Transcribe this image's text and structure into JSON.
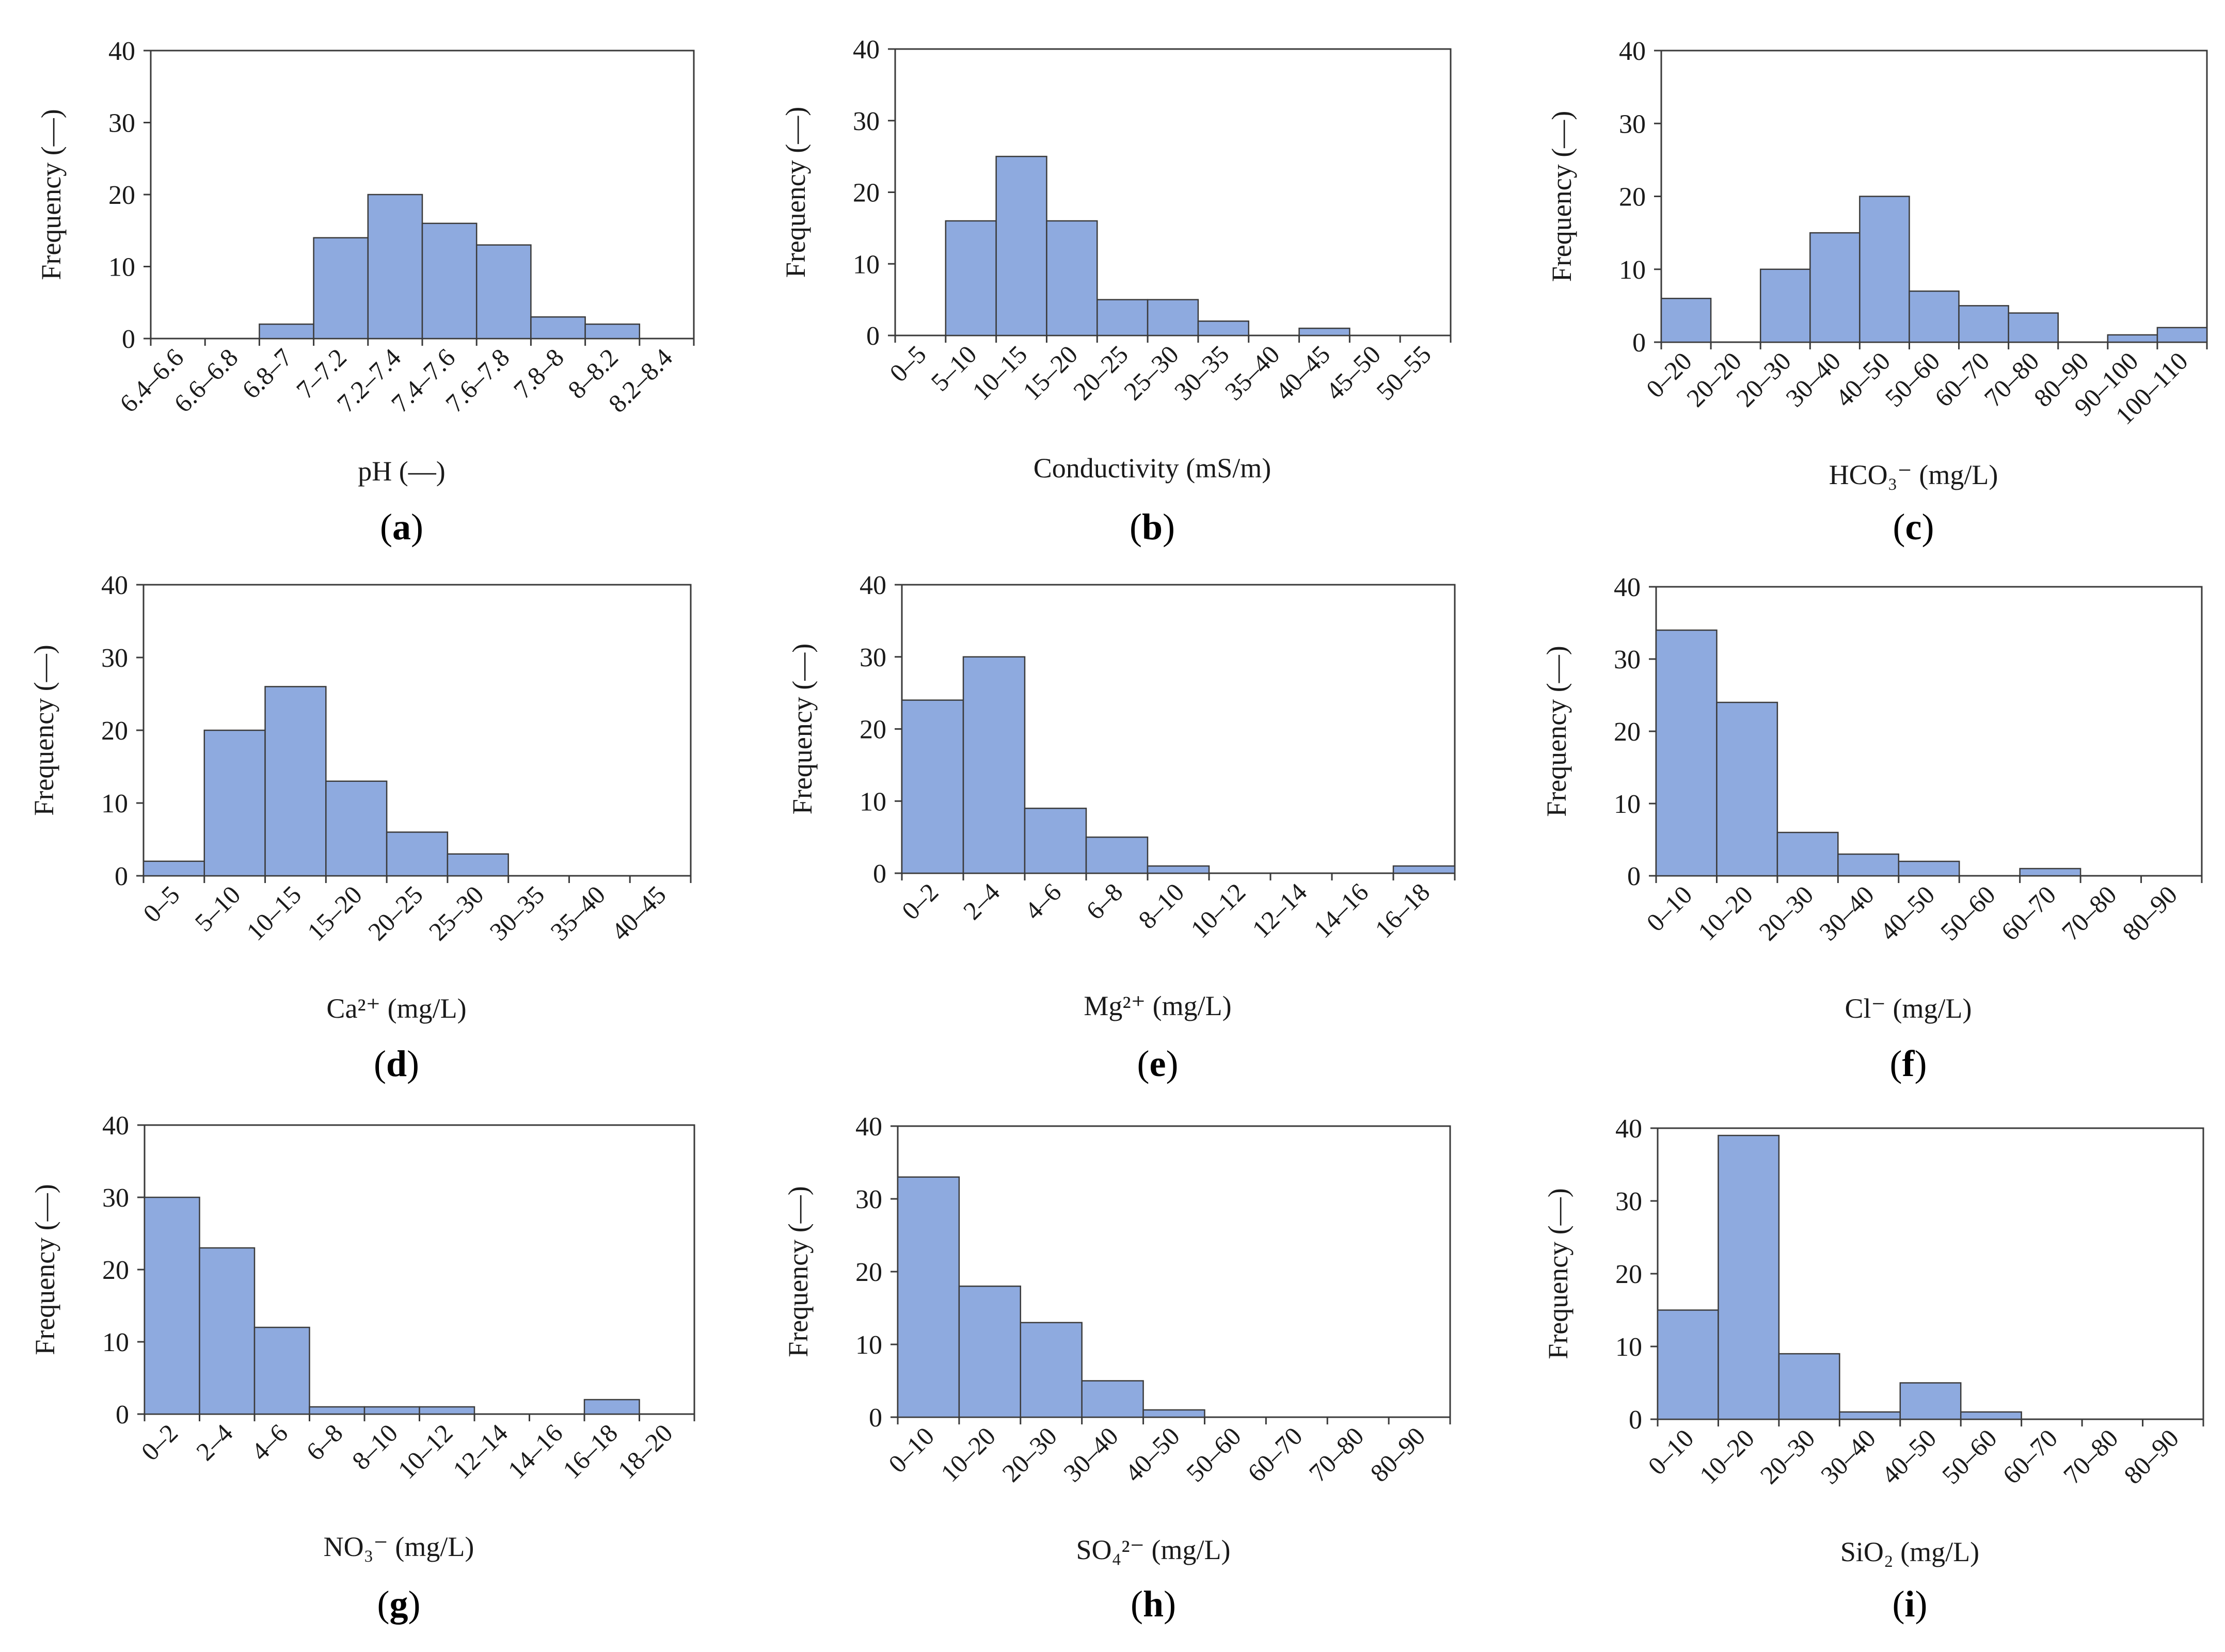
{
  "chart_data": [
    {
      "panel": "a",
      "type": "bar",
      "ylabel": "Frequency (—)",
      "xlabel": "pH (—)",
      "ylim": [
        0,
        40
      ],
      "yticks": [
        0,
        10,
        20,
        30,
        40
      ],
      "categories": [
        "6.4–6.6",
        "6.6–6.8",
        "6.8–7",
        "7–7.2",
        "7.2–7.4",
        "7.4–7.6",
        "7.6–7.8",
        "7.8–8",
        "8–8.2",
        "8.2–8.4"
      ],
      "values": [
        0,
        0,
        2,
        14,
        20,
        16,
        13,
        3,
        2,
        0
      ]
    },
    {
      "panel": "b",
      "type": "bar",
      "ylabel": "Frequency (—)",
      "xlabel": "Conductivity (mS/m)",
      "ylim": [
        0,
        40
      ],
      "yticks": [
        0,
        10,
        20,
        30,
        40
      ],
      "categories": [
        "0–5",
        "5–10",
        "10–15",
        "15–20",
        "20–25",
        "25–30",
        "30–35",
        "35–40",
        "40–45",
        "45–50",
        "50–55"
      ],
      "values": [
        0,
        16,
        25,
        16,
        5,
        5,
        2,
        0,
        1,
        0,
        0
      ]
    },
    {
      "panel": "c",
      "type": "bar",
      "ylabel": "Frequency (—)",
      "xlabel": "HCO₃⁻ (mg/L)",
      "ylim": [
        0,
        40
      ],
      "yticks": [
        0,
        10,
        20,
        30,
        40
      ],
      "categories": [
        "0–20",
        "20–20",
        "20–30",
        "30–40",
        "40–50",
        "50–60",
        "60–70",
        "70–80",
        "80–90",
        "90–100",
        "100–110"
      ],
      "values": [
        6,
        0,
        10,
        15,
        20,
        7,
        5,
        4,
        0,
        1,
        2
      ]
    },
    {
      "panel": "d",
      "type": "bar",
      "ylabel": "Frequency (—)",
      "xlabel": "Ca²⁺ (mg/L)",
      "ylim": [
        0,
        40
      ],
      "yticks": [
        0,
        10,
        20,
        30,
        40
      ],
      "categories": [
        "0–5",
        "5–10",
        "10–15",
        "15–20",
        "20–25",
        "25–30",
        "30–35",
        "35–40",
        "40–45"
      ],
      "values": [
        2,
        20,
        26,
        13,
        6,
        3,
        0,
        0,
        0
      ]
    },
    {
      "panel": "e",
      "type": "bar",
      "ylabel": "Frequency (—)",
      "xlabel": "Mg²⁺ (mg/L)",
      "ylim": [
        0,
        40
      ],
      "yticks": [
        0,
        10,
        20,
        30,
        40
      ],
      "categories": [
        "0–2",
        "2–4",
        "4–6",
        "6–8",
        "8–10",
        "10–12",
        "12–14",
        "14–16",
        "16–18"
      ],
      "values": [
        24,
        30,
        9,
        5,
        1,
        0,
        0,
        0,
        1
      ]
    },
    {
      "panel": "f",
      "type": "bar",
      "ylabel": "Frequency (—)",
      "xlabel": "Cl⁻ (mg/L)",
      "ylim": [
        0,
        40
      ],
      "yticks": [
        0,
        10,
        20,
        30,
        40
      ],
      "categories": [
        "0–10",
        "10–20",
        "20–30",
        "30–40",
        "40–50",
        "50–60",
        "60–70",
        "70–80",
        "80–90"
      ],
      "values": [
        34,
        24,
        6,
        3,
        2,
        0,
        1,
        0,
        0
      ]
    },
    {
      "panel": "g",
      "type": "bar",
      "ylabel": "Frequency (—)",
      "xlabel": "NO₃⁻ (mg/L)",
      "ylim": [
        0,
        40
      ],
      "yticks": [
        0,
        10,
        20,
        30,
        40
      ],
      "categories": [
        "0–2",
        "2–4",
        "4–6",
        "6–8",
        "8–10",
        "10–12",
        "12–14",
        "14–16",
        "16–18",
        "18–20"
      ],
      "values": [
        30,
        23,
        12,
        1,
        1,
        1,
        0,
        0,
        2,
        0
      ]
    },
    {
      "panel": "h",
      "type": "bar",
      "ylabel": "Frequency (—)",
      "xlabel": "SO₄²⁻ (mg/L)",
      "ylim": [
        0,
        40
      ],
      "yticks": [
        0,
        10,
        20,
        30,
        40
      ],
      "categories": [
        "0–10",
        "10–20",
        "20–30",
        "30–40",
        "40–50",
        "50–60",
        "60–70",
        "70–80",
        "80–90"
      ],
      "values": [
        33,
        18,
        13,
        5,
        1,
        0,
        0,
        0,
        0
      ]
    },
    {
      "panel": "i",
      "type": "bar",
      "ylabel": "Frequency (—)",
      "xlabel": "SiO₂ (mg/L)",
      "ylim": [
        0,
        40
      ],
      "yticks": [
        0,
        10,
        20,
        30,
        40
      ],
      "categories": [
        "0–10",
        "10–20",
        "20–30",
        "30–40",
        "40–50",
        "50–60",
        "60–70",
        "70–80",
        "80–90"
      ],
      "values": [
        15,
        39,
        9,
        1,
        5,
        1,
        0,
        0,
        0
      ]
    }
  ]
}
